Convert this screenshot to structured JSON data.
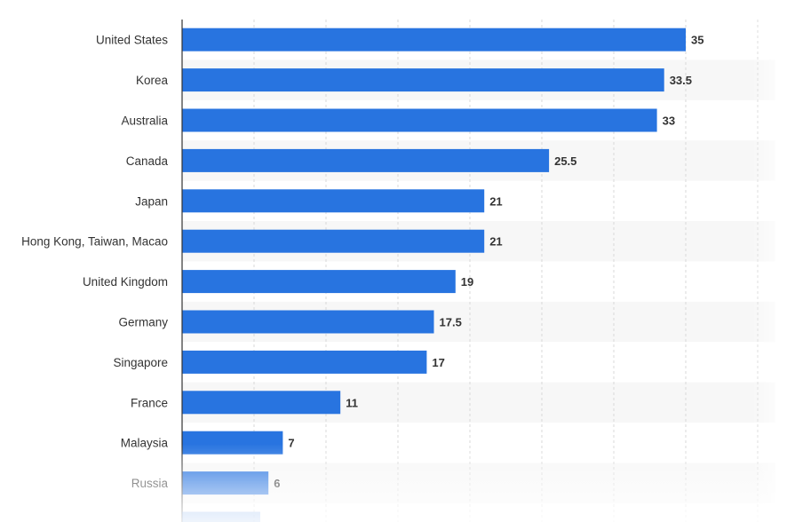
{
  "chart_data": {
    "type": "bar",
    "orientation": "horizontal",
    "categories": [
      "United States",
      "Korea",
      "Australia",
      "Canada",
      "Japan",
      "Hong Kong, Taiwan, Macao",
      "United Kingdom",
      "Germany",
      "Singapore",
      "France",
      "Malaysia",
      "Russia"
    ],
    "values": [
      35,
      33.5,
      33,
      25.5,
      21,
      21,
      19,
      17.5,
      17,
      11,
      7,
      6
    ],
    "value_labels": [
      "35",
      "33.5",
      "33",
      "25.5",
      "21",
      "21",
      "19",
      "17.5",
      "17",
      "11",
      "7",
      "6"
    ],
    "title": "",
    "xlabel": "",
    "ylabel": "",
    "xlim": [
      0,
      40
    ],
    "grid": true,
    "bar_color": "#2874e0",
    "stripe_color": "#f7f7f7"
  }
}
